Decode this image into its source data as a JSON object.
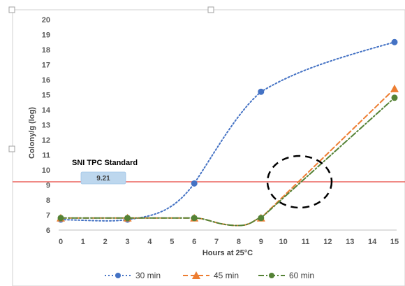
{
  "chart_data": {
    "type": "line",
    "xlabel": "Hours at 25°C",
    "ylabel": "Colony/g (log)",
    "xlim": [
      0,
      15
    ],
    "ylim": [
      6,
      20
    ],
    "x_ticks": [
      0,
      1,
      2,
      3,
      4,
      5,
      6,
      7,
      8,
      9,
      10,
      11,
      12,
      13,
      14,
      15
    ],
    "y_ticks": [
      6,
      7,
      8,
      9,
      10,
      11,
      12,
      13,
      14,
      15,
      16,
      17,
      18,
      19,
      20
    ],
    "grid": false,
    "legend_position": "bottom",
    "series": [
      {
        "name": "30 min",
        "color": "#4472C4",
        "line_style": "dotted",
        "marker": "circle",
        "x": [
          0,
          3,
          6,
          9,
          15
        ],
        "values": [
          6.7,
          6.7,
          9.1,
          15.2,
          18.5
        ]
      },
      {
        "name": "45 min",
        "color": "#ED7D31",
        "line_style": "dashed",
        "marker": "triangle",
        "x": [
          0,
          3,
          6,
          9,
          15
        ],
        "values": [
          6.8,
          6.8,
          6.8,
          6.8,
          15.4
        ]
      },
      {
        "name": "60 min",
        "color": "#548235",
        "line_style": "dash-dot",
        "marker": "circle",
        "x": [
          0,
          3,
          6,
          9,
          15
        ],
        "values": [
          6.8,
          6.8,
          6.8,
          6.8,
          14.8
        ]
      }
    ],
    "annotations": {
      "standard_label": "SNI TPC Standard",
      "standard_value": "9.21",
      "standard_y": 9.21,
      "standard_line_color": "#E8453C",
      "highlight": "dashed-circle"
    }
  }
}
